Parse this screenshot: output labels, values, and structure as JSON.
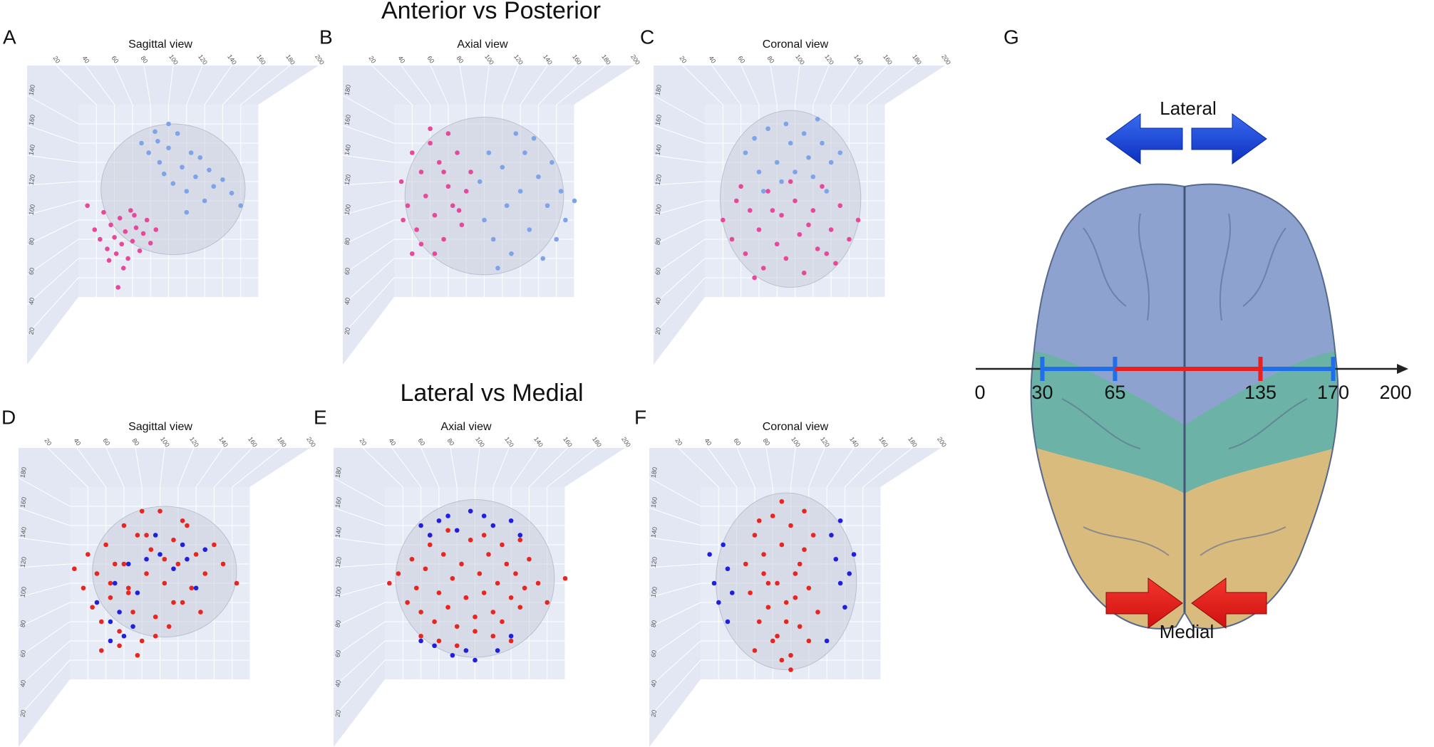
{
  "sections": [
    {
      "title": "Anterior vs Posterior"
    },
    {
      "title": "Lateral vs Medial"
    }
  ],
  "axes": {
    "xlim": [
      0,
      200
    ],
    "ylim": [
      0,
      200
    ],
    "xticks": [
      20,
      40,
      60,
      80,
      100,
      120,
      140,
      160,
      180,
      200
    ],
    "yticks": [
      20,
      40,
      60,
      80,
      100,
      120,
      140,
      160,
      180
    ]
  },
  "panels": [
    {
      "letter": "A",
      "title": "Sagittal view",
      "series": [
        {
          "color": "#e8489a",
          "x": [
            10,
            18,
            24,
            28,
            32,
            36,
            40,
            42,
            46,
            48,
            52,
            55,
            58,
            60,
            64,
            68,
            72,
            76,
            80,
            86,
            34,
            50,
            62,
            44
          ],
          "y": [
            95,
            70,
            60,
            88,
            50,
            75,
            62,
            45,
            82,
            55,
            68,
            40,
            90,
            58,
            72,
            48,
            66,
            80,
            56,
            70,
            38,
            30,
            85,
            10
          ]
        },
        {
          "color": "#7fa3e8",
          "x": [
            70,
            78,
            85,
            90,
            95,
            100,
            105,
            110,
            115,
            120,
            125,
            130,
            135,
            140,
            145,
            150,
            160,
            170,
            180,
            100,
            120,
            88
          ],
          "y": [
            160,
            150,
            172,
            140,
            128,
            155,
            118,
            170,
            135,
            110,
            150,
            125,
            145,
            100,
            132,
            115,
            122,
            108,
            95,
            180,
            88,
            162
          ]
        }
      ]
    },
    {
      "letter": "B",
      "title": "Axial view",
      "series": [
        {
          "color": "#e8489a",
          "x": [
            8,
            15,
            20,
            25,
            30,
            35,
            40,
            45,
            50,
            55,
            60,
            65,
            70,
            75,
            80,
            85,
            30,
            45,
            60,
            20,
            40,
            55,
            72,
            10
          ],
          "y": [
            120,
            95,
            150,
            70,
            130,
            105,
            160,
            85,
            140,
            60,
            115,
            95,
            150,
            75,
            110,
            130,
            55,
            45,
            170,
            45,
            175,
            130,
            90,
            80
          ]
        },
        {
          "color": "#7fa3e8",
          "x": [
            95,
            100,
            105,
            110,
            120,
            125,
            130,
            140,
            145,
            150,
            160,
            165,
            170,
            175,
            180,
            185,
            190,
            115,
            135,
            155,
            200
          ],
          "y": [
            120,
            80,
            150,
            60,
            135,
            95,
            45,
            110,
            150,
            70,
            125,
            40,
            95,
            140,
            60,
            110,
            80,
            30,
            170,
            165,
            100
          ]
        }
      ]
    },
    {
      "letter": "C",
      "title": "Coronal view",
      "series": [
        {
          "color": "#7fa3e8",
          "x": [
            45,
            55,
            60,
            70,
            80,
            85,
            95,
            100,
            110,
            115,
            120,
            130,
            135,
            140,
            150,
            65,
            90,
            125
          ],
          "y": [
            150,
            165,
            130,
            175,
            140,
            120,
            160,
            130,
            170,
            145,
            125,
            160,
            110,
            140,
            150,
            110,
            180,
            185
          ]
        },
        {
          "color": "#e8489a",
          "x": [
            20,
            30,
            35,
            45,
            50,
            60,
            65,
            70,
            80,
            85,
            90,
            100,
            105,
            110,
            120,
            125,
            130,
            140,
            145,
            150,
            160,
            170,
            55,
            95,
            115,
            40,
            135,
            75
          ],
          "y": [
            80,
            60,
            100,
            45,
            90,
            70,
            30,
            110,
            55,
            85,
            40,
            100,
            65,
            25,
            90,
            50,
            115,
            70,
            35,
            95,
            60,
            80,
            20,
            120,
            75,
            115,
            45,
            90
          ]
        }
      ]
    },
    {
      "letter": "D",
      "title": "Sagittal view",
      "series": [
        {
          "color": "#e8251f",
          "x": [
            5,
            15,
            20,
            25,
            30,
            35,
            40,
            45,
            50,
            55,
            60,
            65,
            70,
            75,
            80,
            85,
            90,
            95,
            100,
            105,
            110,
            115,
            120,
            125,
            130,
            135,
            140,
            145,
            150,
            160,
            170,
            185,
            35,
            55,
            75,
            95,
            115,
            45,
            65,
            85,
            105,
            125,
            60,
            80
          ],
          "y": [
            115,
            95,
            130,
            75,
            110,
            60,
            140,
            85,
            120,
            50,
            160,
            95,
            70,
            150,
            40,
            110,
            135,
            65,
            175,
            100,
            55,
            145,
            120,
            80,
            160,
            95,
            130,
            70,
            110,
            140,
            120,
            100,
            30,
            35,
            25,
            45,
            80,
            100,
            90,
            150,
            125,
            165,
            120,
            175
          ]
        },
        {
          "color": "#1f1fe0",
          "x": [
            30,
            45,
            50,
            55,
            60,
            70,
            75,
            85,
            95,
            100,
            115,
            125,
            130,
            140,
            150,
            65,
            45
          ],
          "y": [
            80,
            60,
            100,
            70,
            45,
            55,
            90,
            125,
            150,
            130,
            115,
            140,
            125,
            95,
            135,
            120,
            40
          ]
        }
      ]
    },
    {
      "letter": "E",
      "title": "Axial view",
      "series": [
        {
          "color": "#e8251f",
          "x": [
            5,
            15,
            25,
            30,
            35,
            40,
            45,
            50,
            55,
            60,
            65,
            70,
            75,
            80,
            85,
            90,
            95,
            100,
            105,
            110,
            115,
            120,
            125,
            130,
            135,
            140,
            145,
            150,
            155,
            160,
            170,
            180,
            40,
            60,
            80,
            100,
            120,
            140,
            50,
            70,
            90,
            110,
            130,
            150,
            200
          ],
          "y": [
            100,
            110,
            80,
            125,
            95,
            70,
            115,
            140,
            60,
            90,
            130,
            75,
            105,
            55,
            120,
            85,
            145,
            65,
            110,
            90,
            130,
            70,
            100,
            60,
            120,
            85,
            110,
            75,
            95,
            125,
            100,
            80,
            45,
            40,
            35,
            50,
            45,
            40,
            150,
            155,
            85,
            150,
            140,
            145,
            105
          ]
        },
        {
          "color": "#1f1fe0",
          "x": [
            40,
            50,
            60,
            70,
            80,
            95,
            110,
            120,
            140,
            150,
            40,
            55,
            75,
            100,
            125,
            140,
            90
          ],
          "y": [
            160,
            150,
            165,
            170,
            155,
            175,
            170,
            160,
            165,
            150,
            40,
            35,
            25,
            20,
            30,
            45,
            30
          ]
        }
      ]
    },
    {
      "letter": "F",
      "title": "Coronal view",
      "series": [
        {
          "color": "#e8251f",
          "x": [
            50,
            55,
            60,
            65,
            70,
            75,
            80,
            85,
            90,
            95,
            100,
            105,
            110,
            115,
            120,
            125,
            130,
            60,
            70,
            80,
            90,
            100,
            110,
            120,
            65,
            75,
            85,
            95,
            105,
            115,
            100,
            90
          ],
          "y": [
            120,
            90,
            150,
            60,
            130,
            100,
            170,
            45,
            140,
            80,
            160,
            110,
            55,
            135,
            95,
            150,
            70,
            30,
            110,
            40,
            185,
            25,
            120,
            40,
            165,
            75,
            100,
            60,
            85,
            175,
            10,
            20
          ]
        },
        {
          "color": "#1f1fe0",
          "x": [
            10,
            15,
            20,
            25,
            30,
            35,
            30,
            145,
            150,
            155,
            160,
            165,
            170,
            155,
            140
          ],
          "y": [
            130,
            100,
            80,
            140,
            115,
            90,
            60,
            150,
            125,
            100,
            75,
            110,
            130,
            165,
            40
          ]
        }
      ]
    }
  ],
  "diagram": {
    "letter": "G",
    "lateral_label": "Lateral",
    "medial_label": "Medial",
    "scale": {
      "xlim": [
        0,
        200
      ],
      "ticks": [
        0,
        30,
        65,
        135,
        170,
        200
      ],
      "lateral_color": "#1f6fe8",
      "medial_color": "#e8201f",
      "lateral_ranges": [
        [
          30,
          65
        ],
        [
          135,
          170
        ]
      ],
      "medial_range": [
        65,
        135
      ]
    }
  }
}
